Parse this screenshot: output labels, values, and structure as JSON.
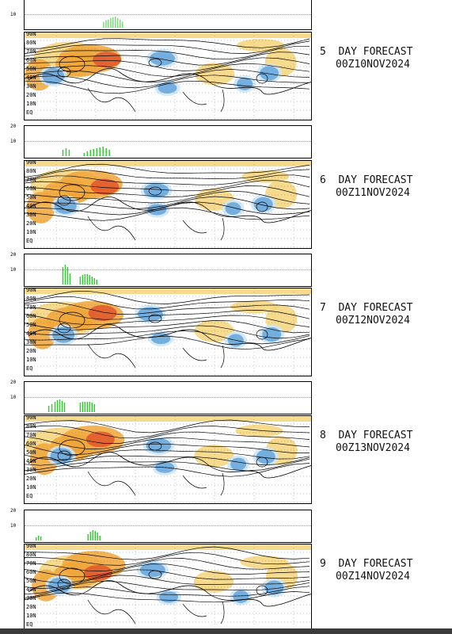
{
  "colors": {
    "warm_light": "#f5d57a",
    "warm_mid": "#f0a63a",
    "warm_dark": "#e0552a",
    "cool_light": "#cfe7f7",
    "cool_mid": "#6aa8dc",
    "cool_dark": "#2e6fbf",
    "bar_green": "#33cc33",
    "contour": "#000000"
  },
  "lat_labels": [
    "90N",
    "80N",
    "70N",
    "60N",
    "50N",
    "40N",
    "30N",
    "20N",
    "10N",
    "EQ"
  ],
  "hist_ticks": [
    "20",
    "10"
  ],
  "top_partial": {
    "hist_tick": "10"
  },
  "panels": [
    {
      "day_label": "5  DAY FORECAST",
      "date": "00Z10NOV2024"
    },
    {
      "day_label": "6  DAY FORECAST",
      "date": "00Z11NOV2024"
    },
    {
      "day_label": "7  DAY FORECAST",
      "date": "00Z12NOV2024"
    },
    {
      "day_label": "8  DAY FORECAST",
      "date": "00Z13NOV2024"
    },
    {
      "day_label": "9  DAY FORECAST",
      "date": "00Z14NOV2024"
    }
  ]
}
